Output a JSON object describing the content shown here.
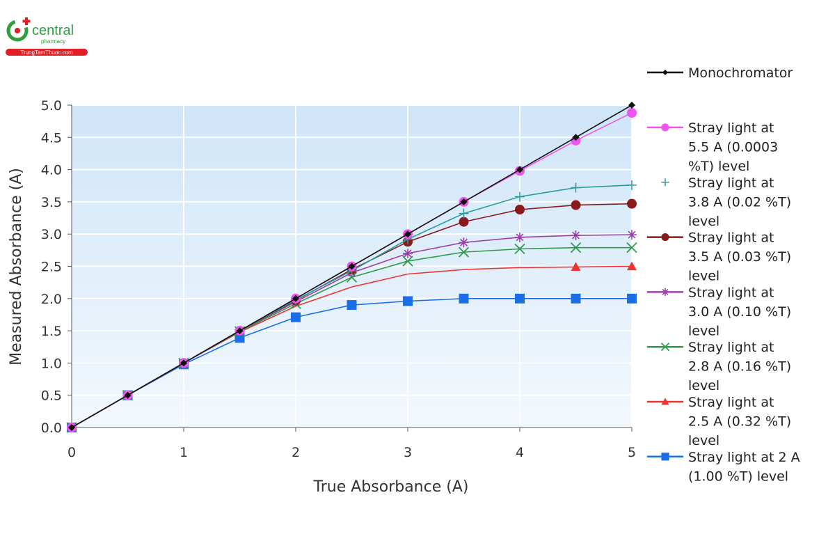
{
  "logo": {
    "brand": "central",
    "sub": "pharmacy",
    "site": "TrungTamThuoc.com",
    "color": "#2e9e3e",
    "accent": "#e31e24"
  },
  "chart_data": {
    "type": "line",
    "title": "",
    "xlabel": "True Absorbance (A)",
    "ylabel": "Measured Absorbance (A)",
    "xlim": [
      0,
      5
    ],
    "ylim": [
      0,
      5
    ],
    "x_ticks": [
      "0",
      "1",
      "2",
      "3",
      "4",
      "5"
    ],
    "y_ticks": [
      "0.0",
      "0.5",
      "1.0",
      "1.5",
      "2.0",
      "2.5",
      "3.0",
      "3.5",
      "4.0",
      "4.5",
      "5.0"
    ],
    "grid": true,
    "legend_position": "right",
    "x": [
      0,
      0.5,
      1,
      1.5,
      2,
      2.5,
      3,
      3.5,
      4,
      4.5,
      5
    ],
    "series": [
      {
        "name": "Monochromator",
        "legend_lines": [
          "Monochromator"
        ],
        "color": "#111111",
        "marker": "diamond",
        "values": [
          0,
          0.5,
          1,
          1.5,
          2,
          2.5,
          3,
          3.5,
          4,
          4.5,
          5
        ]
      },
      {
        "name": "Stray light at 5.5 A (0.0003 %T) level",
        "legend_lines": [
          "Stray light at",
          "5.5 A (0.0003",
          "%T) level"
        ],
        "color": "#ee55ee",
        "marker": "circle",
        "values": [
          0,
          0.5,
          1,
          1.5,
          2,
          2.5,
          3,
          3.5,
          3.98,
          4.45,
          4.88
        ]
      },
      {
        "name": "Stray light at 3.8 A (0.02 %T) level",
        "legend_lines": [
          "Stray light at",
          "3.8 A (0.02 %T)",
          "level"
        ],
        "color": "#2a9d9a",
        "marker": "plus",
        "values": [
          0,
          0.5,
          1,
          1.5,
          1.98,
          2.43,
          2.92,
          3.32,
          3.58,
          3.72,
          3.76
        ]
      },
      {
        "name": "Stray light at 3.5 A (0.03 %T) level",
        "legend_lines": [
          "Stray light at",
          "3.5 A (0.03 %T)",
          "level"
        ],
        "color": "#8b1a1a",
        "marker": "circle",
        "values": [
          0,
          0.5,
          1,
          1.5,
          1.97,
          2.45,
          2.88,
          3.19,
          3.38,
          3.45,
          3.47
        ]
      },
      {
        "name": "Stray light at 3.0 A (0.10 %T) level",
        "legend_lines": [
          "Stray light at",
          "3.0 A (0.10 %T)",
          "level"
        ],
        "color": "#9b3fa8",
        "marker": "asterisk",
        "values": [
          0,
          0.5,
          1,
          1.5,
          1.95,
          2.4,
          2.7,
          2.87,
          2.95,
          2.98,
          2.99
        ]
      },
      {
        "name": "Stray light at 2.8 A (0.16 %T) level",
        "legend_lines": [
          "Stray light at",
          "2.8 A (0.16 %T)",
          "level"
        ],
        "color": "#2e9a4a",
        "marker": "cross",
        "values": [
          0,
          0.5,
          1,
          1.49,
          1.92,
          2.33,
          2.58,
          2.72,
          2.77,
          2.79,
          2.79
        ]
      },
      {
        "name": "Stray light at 2.5 A (0.32 %T) level",
        "legend_lines": [
          "Stray light at",
          "2.5 A (0.32 %T)",
          "level"
        ],
        "color": "#ee3333",
        "marker": "triangle",
        "marker_from": 4.5,
        "values": [
          0,
          0.5,
          1,
          1.48,
          1.88,
          2.18,
          2.38,
          2.45,
          2.48,
          2.49,
          2.5
        ]
      },
      {
        "name": "Stray light at 2 A (1.00 %T) level",
        "legend_lines": [
          "Stray light at 2 A",
          "(1.00 %T) level"
        ],
        "color": "#1a6fe8",
        "marker": "square",
        "values": [
          0,
          0.5,
          0.98,
          1.39,
          1.71,
          1.9,
          1.96,
          2.0,
          2.0,
          2.0,
          2.0
        ]
      }
    ]
  }
}
